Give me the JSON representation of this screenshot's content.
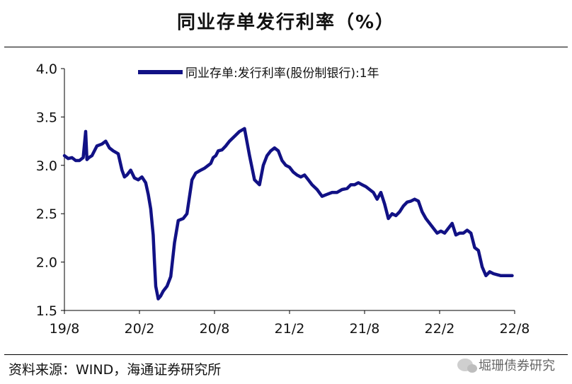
{
  "title": "同业存单发行利率（%）",
  "source": "资料来源：WIND，海通证券研究所",
  "watermark": "堀珊债券研究",
  "colors": {
    "series": "#111185",
    "axis": "#000000"
  },
  "chart_data": {
    "type": "line",
    "title": "同业存单发行利率（%）",
    "xlabel": "",
    "ylabel": "",
    "ylim": [
      1.5,
      4.0
    ],
    "yticks": [
      "4.0",
      "3.5",
      "3.0",
      "2.5",
      "2.0",
      "1.5"
    ],
    "xticks": [
      "19/8",
      "20/2",
      "20/8",
      "21/2",
      "21/8",
      "22/2",
      "22/8"
    ],
    "x_range_months": [
      0,
      36
    ],
    "grid": false,
    "legend": "top",
    "series": [
      {
        "name": "同业存单:发行利率(股份制银行):1年",
        "x": [
          0.0,
          0.3,
          0.6,
          0.9,
          1.2,
          1.5,
          1.7,
          1.8,
          1.95,
          2.2,
          2.6,
          3.0,
          3.3,
          3.6,
          3.9,
          4.3,
          4.6,
          4.8,
          5.0,
          5.3,
          5.6,
          5.9,
          6.2,
          6.5,
          6.7,
          6.9,
          7.1,
          7.2,
          7.3,
          7.5,
          7.7,
          7.9,
          8.2,
          8.5,
          8.8,
          9.1,
          9.5,
          9.8,
          10.2,
          10.5,
          10.9,
          11.2,
          11.5,
          11.7,
          11.9,
          12.1,
          12.3,
          12.6,
          12.9,
          13.2,
          13.6,
          14.0,
          14.4,
          14.8,
          15.2,
          15.6,
          15.9,
          16.2,
          16.5,
          16.8,
          17.1,
          17.4,
          17.7,
          18.0,
          18.3,
          18.6,
          18.9,
          19.2,
          19.5,
          19.8,
          20.2,
          20.6,
          21.0,
          21.4,
          21.8,
          22.2,
          22.6,
          22.9,
          23.2,
          23.5,
          23.8,
          24.1,
          24.4,
          24.7,
          25.0,
          25.3,
          25.6,
          25.9,
          26.2,
          26.5,
          26.8,
          27.1,
          27.4,
          27.7,
          28.0,
          28.3,
          28.6,
          28.9,
          29.2,
          29.5,
          29.8,
          30.1,
          30.4,
          30.7,
          31.0,
          31.3,
          31.6,
          31.9,
          32.2,
          32.5,
          32.8,
          33.1,
          33.4,
          33.7,
          34.0,
          34.3,
          34.6,
          34.9,
          35.2,
          35.5,
          35.8
        ],
        "values": [
          3.1,
          3.07,
          3.08,
          3.05,
          3.05,
          3.08,
          3.35,
          3.06,
          3.08,
          3.1,
          3.2,
          3.22,
          3.25,
          3.18,
          3.15,
          3.12,
          2.95,
          2.88,
          2.9,
          2.95,
          2.87,
          2.85,
          2.88,
          2.82,
          2.7,
          2.55,
          2.28,
          2.0,
          1.75,
          1.62,
          1.65,
          1.7,
          1.75,
          1.85,
          2.2,
          2.43,
          2.45,
          2.5,
          2.85,
          2.92,
          2.95,
          2.97,
          3.0,
          3.02,
          3.08,
          3.1,
          3.15,
          3.16,
          3.2,
          3.25,
          3.3,
          3.35,
          3.38,
          3.1,
          2.85,
          2.8,
          3.0,
          3.1,
          3.15,
          3.18,
          3.15,
          3.05,
          3.0,
          2.98,
          2.93,
          2.9,
          2.88,
          2.9,
          2.85,
          2.8,
          2.75,
          2.68,
          2.7,
          2.72,
          2.72,
          2.75,
          2.76,
          2.8,
          2.8,
          2.82,
          2.8,
          2.78,
          2.75,
          2.72,
          2.65,
          2.72,
          2.6,
          2.45,
          2.5,
          2.48,
          2.52,
          2.58,
          2.62,
          2.63,
          2.65,
          2.63,
          2.52,
          2.45,
          2.4,
          2.35,
          2.3,
          2.32,
          2.3,
          2.35,
          2.4,
          2.28,
          2.3,
          2.3,
          2.33,
          2.3,
          2.15,
          2.12,
          1.95,
          1.86,
          1.9,
          1.88,
          1.87,
          1.86,
          1.86,
          1.86,
          1.86
        ]
      }
    ]
  }
}
